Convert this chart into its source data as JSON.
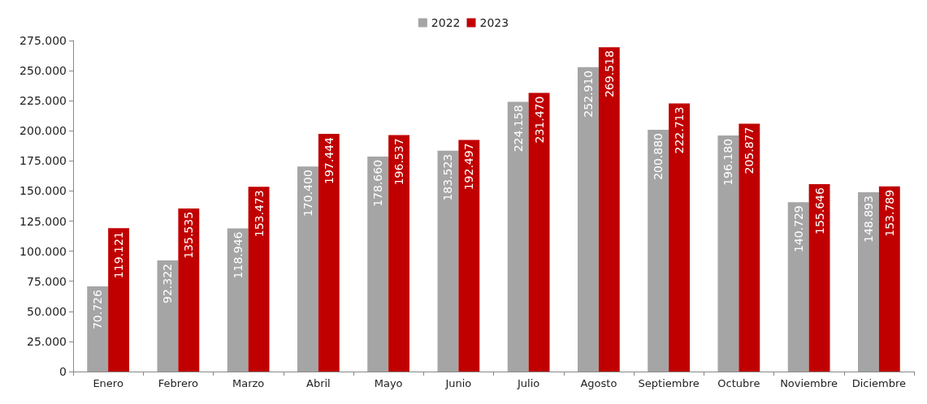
{
  "chart_data": {
    "type": "bar",
    "categories": [
      "Enero",
      "Febrero",
      "Marzo",
      "Abril",
      "Mayo",
      "Junio",
      "Julio",
      "Agosto",
      "Septiembre",
      "Octubre",
      "Noviembre",
      "Diciembre"
    ],
    "series": [
      {
        "name": "2022",
        "color": "#a5a5a5",
        "values": [
          70726,
          92322,
          118946,
          170400,
          178660,
          183523,
          224158,
          252910,
          200880,
          196180,
          140729,
          148893
        ],
        "value_labels": [
          "70.726",
          "92.322",
          "118.946",
          "170.400",
          "178.660",
          "183.523",
          "224.158",
          "252.910",
          "200.880",
          "196.180",
          "140.729",
          "148.893"
        ]
      },
      {
        "name": "2023",
        "color": "#c00000",
        "values": [
          119121,
          135535,
          153473,
          197444,
          196537,
          192497,
          231470,
          269518,
          222713,
          205877,
          155646,
          153789
        ],
        "value_labels": [
          "119.121",
          "135.535",
          "153.473",
          "197.444",
          "196.537",
          "192.497",
          "231.470",
          "269.518",
          "222.713",
          "205.877",
          "155.646",
          "153.789"
        ]
      }
    ],
    "ylim": [
      0,
      275000
    ],
    "yticks": [
      {
        "value": 0,
        "label": "0"
      },
      {
        "value": 25000,
        "label": "25.000"
      },
      {
        "value": 50000,
        "label": "50.000"
      },
      {
        "value": 75000,
        "label": "75.000"
      },
      {
        "value": 100000,
        "label": "100.000"
      },
      {
        "value": 125000,
        "label": "125.000"
      },
      {
        "value": 150000,
        "label": "150.000"
      },
      {
        "value": 175000,
        "label": "175.000"
      },
      {
        "value": 200000,
        "label": "200.000"
      },
      {
        "value": 225000,
        "label": "225.000"
      },
      {
        "value": 250000,
        "label": "250.000"
      },
      {
        "value": 275000,
        "label": "275.000"
      }
    ],
    "grid": false,
    "legend": "top"
  }
}
